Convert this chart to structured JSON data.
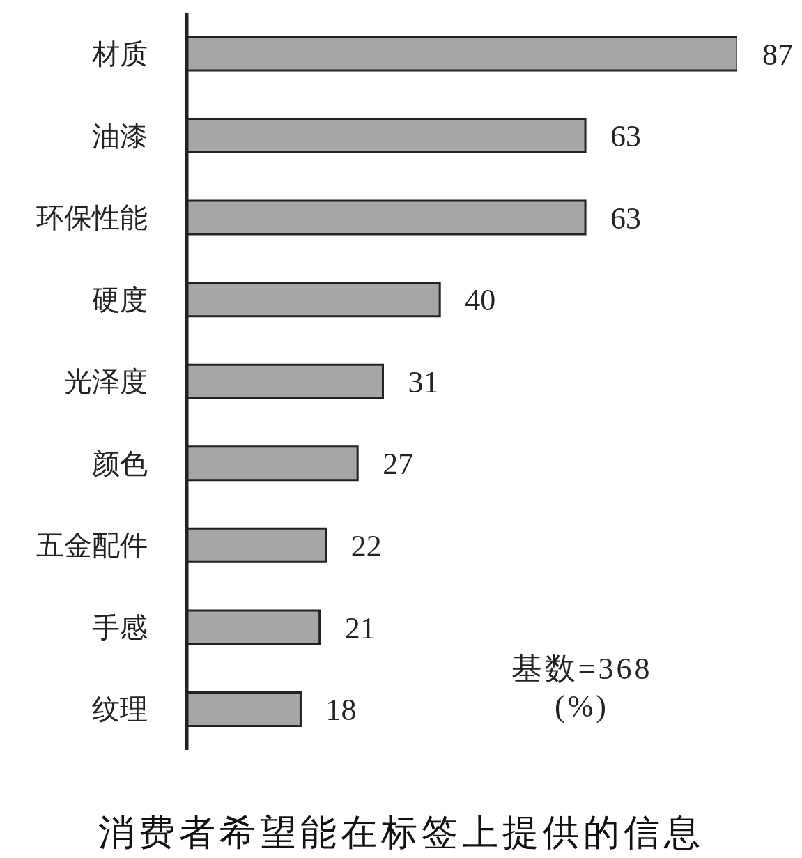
{
  "chart_data": {
    "type": "bar",
    "orientation": "horizontal",
    "title": "消费者希望能在标签上提供的信息",
    "categories": [
      "材质",
      "油漆",
      "环保性能",
      "硬度",
      "光泽度",
      "颜色",
      "五金配件",
      "手感",
      "纹理"
    ],
    "values": [
      87,
      63,
      63,
      40,
      31,
      27,
      22,
      21,
      18
    ],
    "color": "#a6a6a6",
    "data_labels": true,
    "annotations": [
      "基数=368",
      "(%)"
    ]
  }
}
